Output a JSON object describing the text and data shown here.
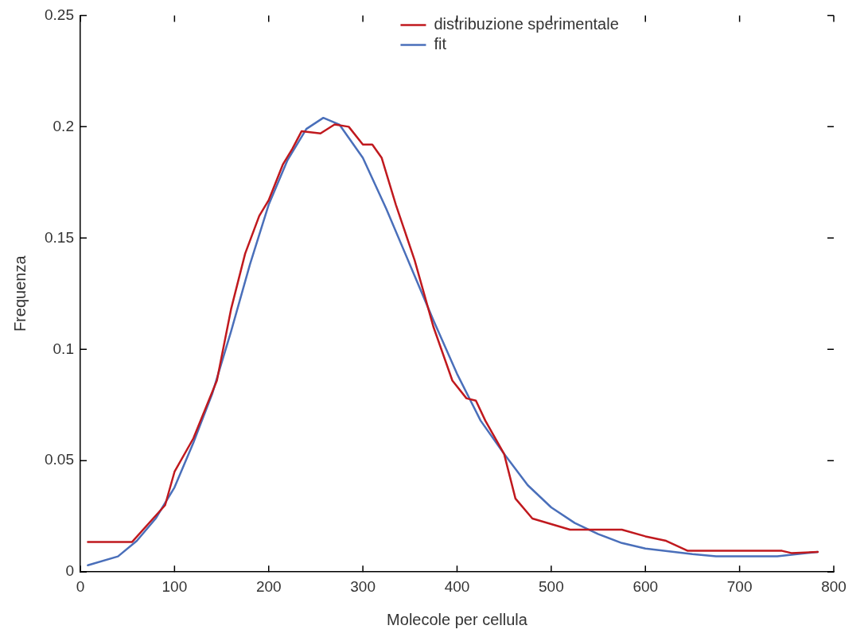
{
  "chart_data": {
    "type": "line",
    "xlabel": "Molecole per cellula",
    "ylabel": "Frequenza",
    "xlim": [
      0,
      800
    ],
    "xticks": [
      0,
      100,
      200,
      300,
      400,
      500,
      600,
      700,
      800
    ],
    "ylim": [
      0,
      0.25
    ],
    "yticks": [
      0,
      0.05,
      0.1,
      0.15,
      0.2,
      0.25
    ],
    "grid": false,
    "legend": "top right",
    "marker": "none",
    "line_style": "solid",
    "series": [
      {
        "name": "distribuzione sperimentale",
        "color": "#c0191e",
        "x": [
          8,
          55,
          90,
          100,
          120,
          145,
          160,
          175,
          190,
          200,
          215,
          225,
          235,
          255,
          270,
          285,
          300,
          310,
          320,
          335,
          355,
          375,
          395,
          410,
          420,
          430,
          450,
          462,
          480,
          520,
          575,
          600,
          622,
          645,
          745,
          755,
          783
        ],
        "values": [
          0.0135,
          0.0135,
          0.03,
          0.045,
          0.06,
          0.086,
          0.118,
          0.143,
          0.16,
          0.167,
          0.183,
          0.19,
          0.198,
          0.197,
          0.201,
          0.2,
          0.192,
          0.192,
          0.186,
          0.165,
          0.14,
          0.11,
          0.086,
          0.078,
          0.077,
          0.068,
          0.053,
          0.033,
          0.024,
          0.019,
          0.019,
          0.016,
          0.014,
          0.0095,
          0.0095,
          0.0085,
          0.009
        ]
      },
      {
        "name": "fit",
        "color": "#4a6fba",
        "x": [
          8,
          40,
          60,
          80,
          100,
          120,
          140,
          160,
          180,
          200,
          220,
          240,
          258,
          275,
          300,
          325,
          350,
          375,
          400,
          425,
          450,
          475,
          500,
          525,
          550,
          575,
          600,
          650,
          675,
          740,
          783
        ],
        "values": [
          0.003,
          0.007,
          0.014,
          0.024,
          0.038,
          0.058,
          0.08,
          0.108,
          0.138,
          0.165,
          0.185,
          0.199,
          0.204,
          0.201,
          0.186,
          0.163,
          0.138,
          0.113,
          0.089,
          0.068,
          0.053,
          0.039,
          0.029,
          0.022,
          0.017,
          0.013,
          0.0105,
          0.008,
          0.007,
          0.007,
          0.009
        ]
      }
    ]
  }
}
